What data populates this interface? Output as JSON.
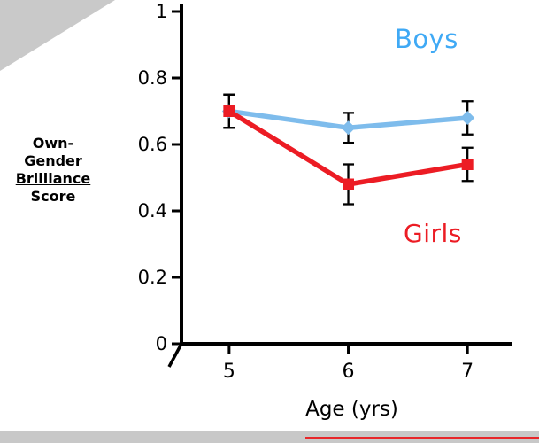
{
  "figure": {
    "background": "#ffffff",
    "photo_frame_color": "#c8c8c8",
    "cropped_red_line_color": "#e8262a"
  },
  "chart_data": {
    "type": "line",
    "title": "",
    "xlabel": "Age (yrs)",
    "ylabel": "Own-Gender Brilliance Score",
    "ylabel_lines": [
      "Own-",
      "Gender",
      "Brilliance",
      "Score"
    ],
    "ylabel_underlined_word": "Brilliance",
    "x": [
      5,
      6,
      7
    ],
    "xtick_labels": [
      "5",
      "6",
      "7"
    ],
    "yticks": [
      0,
      0.2,
      0.4,
      0.6,
      0.8,
      1
    ],
    "ytick_labels": [
      "0",
      "0.2",
      "0.4",
      "0.6",
      "0.8",
      "1"
    ],
    "xlim": [
      4.6,
      7.37
    ],
    "ylim": [
      0,
      1
    ],
    "grid": false,
    "legend_position": "inline-annotations",
    "axis_color": "#000000",
    "error_bar_color": "#000000",
    "series": [
      {
        "name": "Boys",
        "line_color": "#7ebcec",
        "label_color": "#3fa9f5",
        "marker": "diamond",
        "values": [
          0.7,
          0.65,
          0.68
        ],
        "errors": [
          0.05,
          0.045,
          0.05
        ]
      },
      {
        "name": "Girls",
        "line_color": "#ec1c24",
        "label_color": "#ec1c24",
        "marker": "square",
        "values": [
          0.7,
          0.48,
          0.54
        ],
        "errors": [
          0.05,
          0.06,
          0.05
        ]
      }
    ]
  }
}
